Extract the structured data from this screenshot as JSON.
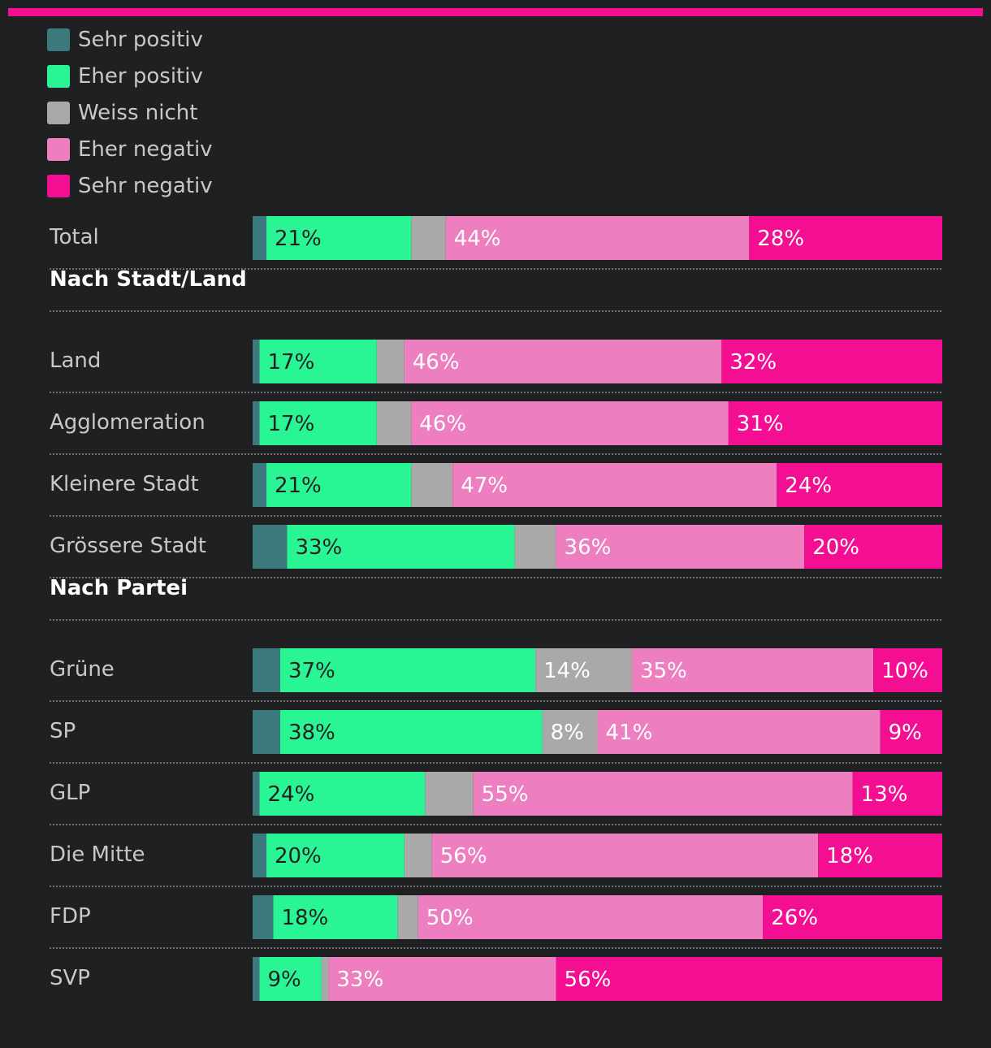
{
  "colors": {
    "background": "#1f2022",
    "accent_bar": "#f30e92",
    "divider": "#6e6e70"
  },
  "legend": [
    {
      "label": "Sehr positiv",
      "color": "#3d7a7d"
    },
    {
      "label": "Eher positiv",
      "color": "#2af595"
    },
    {
      "label": "Weiss nicht",
      "color": "#a9a9a9"
    },
    {
      "label": "Eher negativ",
      "color": "#ed7ec0"
    },
    {
      "label": "Sehr negativ",
      "color": "#f30e92"
    }
  ],
  "chart_data": {
    "type": "bar",
    "orientation": "horizontal",
    "stacked": true,
    "normalized_to": 100,
    "unit": "%",
    "series_names": [
      "Sehr positiv",
      "Eher positiv",
      "Weiss nicht",
      "Eher negativ",
      "Sehr negativ"
    ],
    "label_colors": [
      "#ffffff",
      "#1f2022",
      "#ffffff",
      "#ffffff",
      "#ffffff"
    ],
    "groups": [
      {
        "title": "",
        "rows": [
          {
            "label": "Total",
            "values": [
              2,
              21,
              5,
              44,
              28
            ]
          }
        ]
      },
      {
        "title": "Nach Stadt/Land",
        "rows": [
          {
            "label": "Land",
            "values": [
              1,
              17,
              4,
              46,
              32
            ]
          },
          {
            "label": "Agglomeration",
            "values": [
              1,
              17,
              5,
              46,
              31
            ]
          },
          {
            "label": "Kleinere Stadt",
            "values": [
              2,
              21,
              6,
              47,
              24
            ]
          },
          {
            "label": "Grössere Stadt",
            "values": [
              5,
              33,
              6,
              36,
              20
            ]
          }
        ]
      },
      {
        "title": "Nach Partei",
        "rows": [
          {
            "label": "Grüne",
            "values": [
              4,
              37,
              14,
              35,
              10
            ]
          },
          {
            "label": "SP",
            "values": [
              4,
              38,
              8,
              41,
              9
            ]
          },
          {
            "label": "GLP",
            "values": [
              1,
              24,
              7,
              55,
              13
            ]
          },
          {
            "label": "Die Mitte",
            "values": [
              2,
              20,
              4,
              56,
              18
            ]
          },
          {
            "label": "FDP",
            "values": [
              3,
              18,
              3,
              50,
              26
            ]
          },
          {
            "label": "SVP",
            "values": [
              1,
              9,
              1,
              33,
              56
            ]
          }
        ]
      }
    ],
    "show_label_min": 8
  }
}
